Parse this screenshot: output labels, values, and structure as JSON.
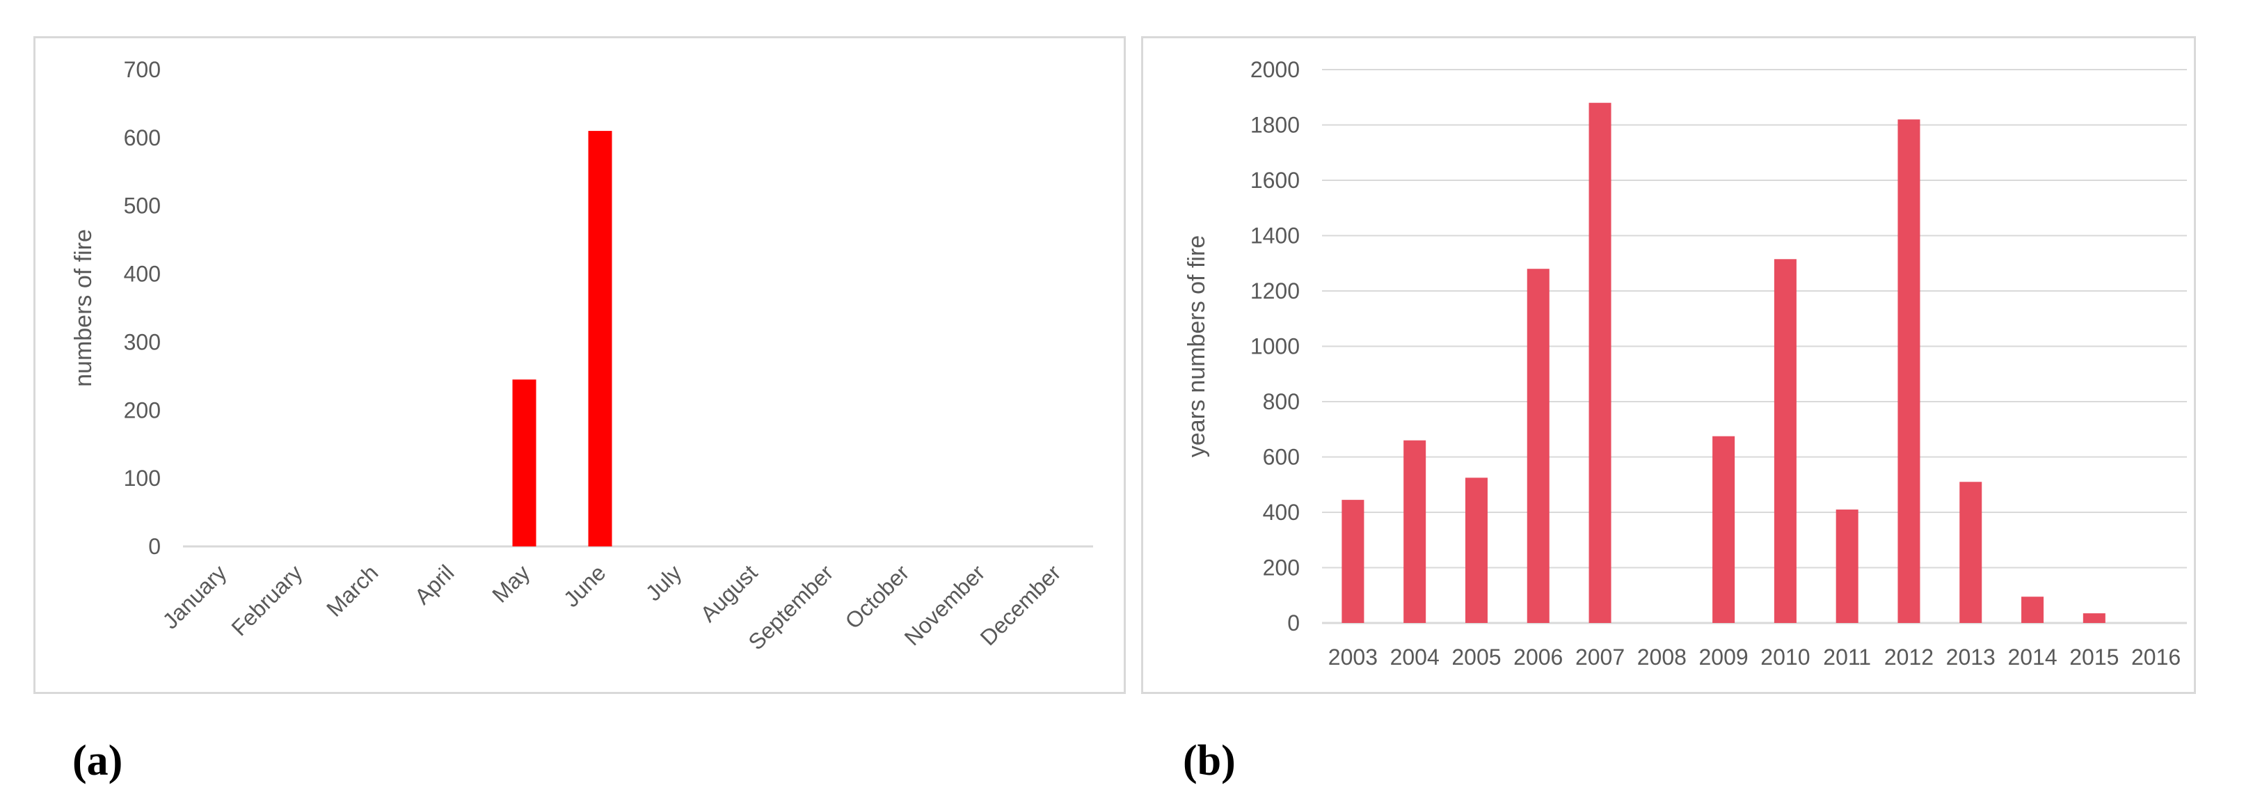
{
  "panels": {
    "a": {
      "label": "(a)"
    },
    "b": {
      "label": "(b)"
    }
  },
  "chart_data": [
    {
      "type": "bar",
      "categories": [
        "January",
        "February",
        "March",
        "April",
        "May",
        "June",
        "July",
        "August",
        "September",
        "October",
        "November",
        "December"
      ],
      "values": [
        0,
        0,
        0,
        0,
        245,
        610,
        0,
        0,
        0,
        0,
        0,
        0
      ],
      "title": "",
      "xlabel": "",
      "ylabel": "numbers of fire",
      "ylim": [
        0,
        700
      ],
      "yticks": [
        0,
        100,
        200,
        300,
        400,
        500,
        600,
        700
      ],
      "grid": false,
      "color": "#ff0000"
    },
    {
      "type": "bar",
      "categories": [
        "2003",
        "2004",
        "2005",
        "2006",
        "2007",
        "2008",
        "2009",
        "2010",
        "2011",
        "2012",
        "2013",
        "2014",
        "2015",
        "2016"
      ],
      "values": [
        445,
        660,
        525,
        1280,
        1880,
        0,
        675,
        1315,
        410,
        1820,
        510,
        95,
        35,
        0
      ],
      "title": "",
      "xlabel": "",
      "ylabel": "years numbers of fire",
      "ylim": [
        0,
        2000
      ],
      "yticks": [
        0,
        200,
        400,
        600,
        800,
        1000,
        1200,
        1400,
        1600,
        1800,
        2000
      ],
      "grid": true,
      "color": "#e84c5e"
    }
  ]
}
